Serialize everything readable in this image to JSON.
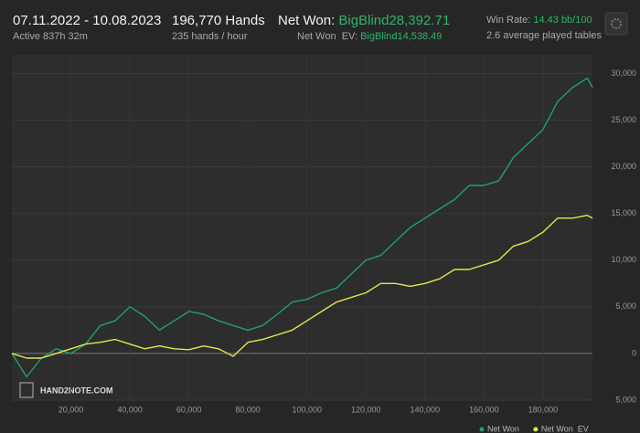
{
  "header": {
    "date_range": "07.11.2022 - 10.08.2023",
    "active": "Active 837h 32m",
    "hands": "196,770 Hands",
    "hands_per_hour": "235 hands / hour",
    "net_won_label": "Net Won:",
    "net_won_value": "BigBlind28,392.71",
    "net_won_ev_label": "Net Won  EV:",
    "net_won_ev_value": "BigBlind14,538.49",
    "win_rate_label": "Win Rate:",
    "win_rate_value": "14.43 bb/100",
    "tables": "2.6 average played tables",
    "watermark": "HAND2NOTE.COM"
  },
  "chart_data": {
    "type": "line",
    "x": [
      0,
      5000,
      10000,
      15000,
      20000,
      25000,
      30000,
      35000,
      40000,
      45000,
      50000,
      55000,
      60000,
      65000,
      70000,
      75000,
      80000,
      85000,
      90000,
      95000,
      100000,
      105000,
      110000,
      115000,
      120000,
      125000,
      130000,
      135000,
      140000,
      145000,
      150000,
      155000,
      160000,
      165000,
      170000,
      175000,
      180000,
      185000,
      190000,
      195000,
      196770
    ],
    "series": [
      {
        "name": "Net Won",
        "color": "#1fa463",
        "values": [
          0,
          -2500,
          -500,
          500,
          0,
          1000,
          3000,
          3500,
          5000,
          4000,
          2500,
          3500,
          4500,
          4200,
          3500,
          3000,
          2500,
          3000,
          4200,
          5500,
          5800,
          6500,
          7000,
          8500,
          10000,
          10500,
          12000,
          13500,
          14500,
          15500,
          16500,
          18000,
          18000,
          18500,
          21000,
          22500,
          24000,
          27000,
          28500,
          29500,
          28500
        ]
      },
      {
        "name": "Net Won  EV",
        "color": "#e6e64a",
        "values": [
          0,
          -500,
          -500,
          0,
          500,
          1000,
          1200,
          1500,
          1000,
          500,
          800,
          500,
          400,
          800,
          500,
          -300,
          1200,
          1500,
          2000,
          2500,
          3500,
          4500,
          5500,
          6000,
          6500,
          7500,
          7500,
          7200,
          7500,
          8000,
          9000,
          9000,
          9500,
          10000,
          11500,
          12000,
          13000,
          14500,
          14500,
          14800,
          14500
        ]
      }
    ],
    "xlim": [
      0,
      196770
    ],
    "ylim": [
      -5000,
      32000
    ],
    "xticks": [
      {
        "value": 20000,
        "label": "20,000"
      },
      {
        "value": 40000,
        "label": "40,000"
      },
      {
        "value": 60000,
        "label": "60,000"
      },
      {
        "value": 80000,
        "label": "80,000"
      },
      {
        "value": 100000,
        "label": "100,000"
      },
      {
        "value": 120000,
        "label": "120,000"
      },
      {
        "value": 140000,
        "label": "140,000"
      },
      {
        "value": 160000,
        "label": "160,000"
      },
      {
        "value": 180000,
        "label": "180,000"
      }
    ],
    "yticks": [
      {
        "value": 30000,
        "label": "30,000"
      },
      {
        "value": 25000,
        "label": "25,000"
      },
      {
        "value": 20000,
        "label": "20,000"
      },
      {
        "value": 15000,
        "label": "15,000"
      },
      {
        "value": 10000,
        "label": "10,000"
      },
      {
        "value": 5000,
        "label": "5,000"
      },
      0,
      {
        "value": -5000,
        "label": "5,000"
      }
    ],
    "grid": true
  }
}
